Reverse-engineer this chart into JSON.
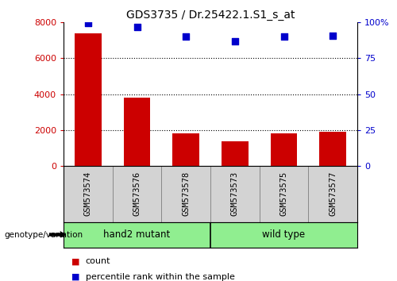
{
  "title": "GDS3735 / Dr.25422.1.S1_s_at",
  "samples": [
    "GSM573574",
    "GSM573576",
    "GSM573578",
    "GSM573573",
    "GSM573575",
    "GSM573577"
  ],
  "counts": [
    7400,
    3800,
    1800,
    1350,
    1800,
    1900
  ],
  "percentiles": [
    99.5,
    97,
    90,
    87,
    90,
    91
  ],
  "groups": [
    {
      "label": "hand2 mutant",
      "start": 0,
      "end": 3
    },
    {
      "label": "wild type",
      "start": 3,
      "end": 6
    }
  ],
  "bar_color": "#cc0000",
  "dot_color": "#0000cc",
  "left_ylim": [
    0,
    8000
  ],
  "right_ylim": [
    0,
    100
  ],
  "left_yticks": [
    0,
    2000,
    4000,
    6000,
    8000
  ],
  "right_yticks": [
    0,
    25,
    50,
    75,
    100
  ],
  "right_yticklabels": [
    "0",
    "25",
    "50",
    "75",
    "100%"
  ],
  "group_bg_color": "#90ee90",
  "label_bg_color": "#d3d3d3",
  "legend_count_label": "count",
  "legend_pct_label": "percentile rank within the sample",
  "genotype_label": "genotype/variation"
}
